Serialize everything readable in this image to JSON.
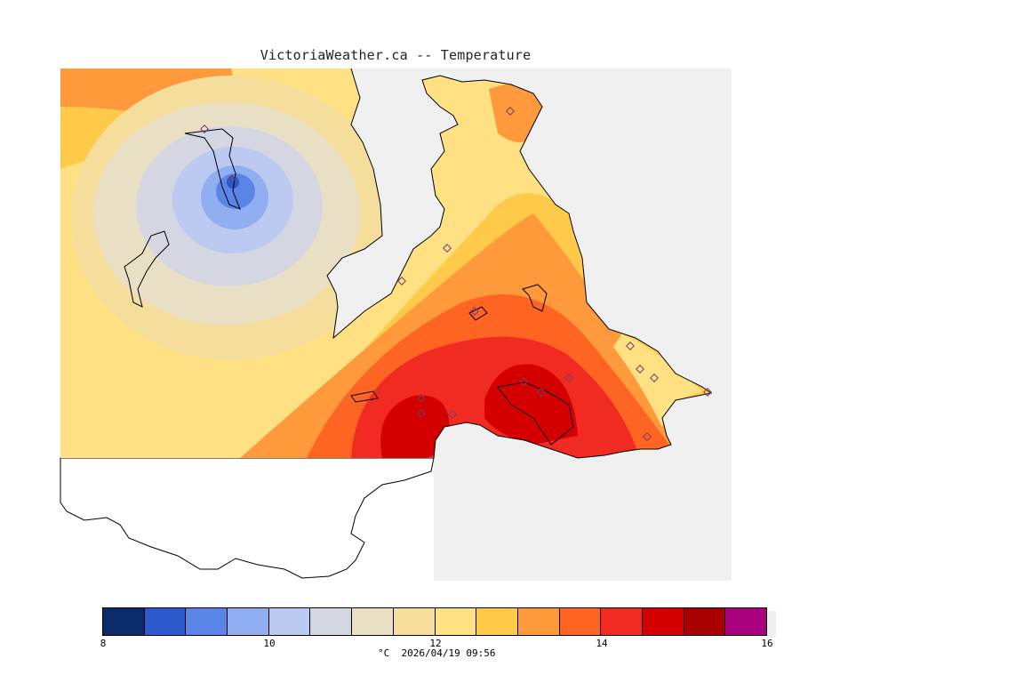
{
  "title": "VictoriaWeather.ca -- Temperature",
  "legend": {
    "colors": [
      "#0a2a6a",
      "#2a5acc",
      "#5a84e6",
      "#90aef0",
      "#bcc9f0",
      "#d4d6e2",
      "#e8dfc4",
      "#f5dd9c",
      "#ffe082",
      "#ffc94a",
      "#ff9a3c",
      "#ff6522",
      "#f22b22",
      "#d40000",
      "#a80000",
      "#a8007e"
    ],
    "ticks": [
      "8",
      "10",
      "12",
      "14",
      "16"
    ],
    "unit": "°C",
    "timestamp": "2026/04/19 09:56"
  },
  "colors": {
    "ocean": "#f0f0f0",
    "land_unshaded": "#ffffff",
    "coast": "#000000",
    "station_marker": "#7a3a6a"
  }
}
